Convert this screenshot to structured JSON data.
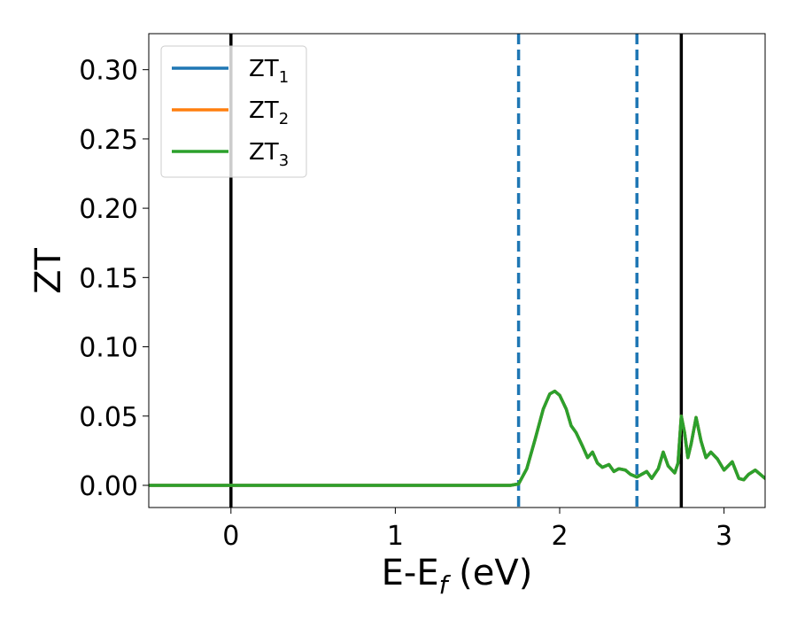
{
  "chart_data": {
    "type": "line",
    "xlabel": "E-E",
    "xlabel_sub": "f",
    "xlabel_unit": " (eV)",
    "ylabel": "ZT",
    "xlim": [
      -0.5,
      3.25
    ],
    "ylim": [
      -0.016,
      0.326
    ],
    "x_ticks": [
      0,
      1,
      2,
      3
    ],
    "x_tick_labels": [
      "0",
      "1",
      "2",
      "3"
    ],
    "y_ticks": [
      0.0,
      0.05,
      0.1,
      0.15,
      0.2,
      0.25,
      0.3
    ],
    "y_tick_labels": [
      "0.00",
      "0.05",
      "0.10",
      "0.15",
      "0.20",
      "0.25",
      "0.30"
    ],
    "grid": false,
    "legend_position": "top-left",
    "vertical_lines": [
      {
        "x": 0.0,
        "style": "solid",
        "color": "#000000"
      },
      {
        "x": 1.75,
        "style": "dashed",
        "color": "#1f77b4"
      },
      {
        "x": 2.47,
        "style": "dashed",
        "color": "#1f77b4"
      },
      {
        "x": 2.74,
        "style": "solid",
        "color": "#000000"
      }
    ],
    "series": [
      {
        "name": "ZT",
        "name_sub": "1",
        "color": "#1f77b4",
        "x": [
          -0.5,
          1.7,
          1.75,
          1.8,
          1.85,
          1.9,
          1.94,
          1.97,
          2.0,
          2.04,
          2.07,
          2.1,
          2.14,
          2.17,
          2.2,
          2.23,
          2.26,
          2.3,
          2.33,
          2.36,
          2.4,
          2.43,
          2.47,
          2.5,
          2.53,
          2.56,
          2.6,
          2.63,
          2.66,
          2.7,
          2.72,
          2.74,
          2.76,
          2.78,
          2.8,
          2.83,
          2.86,
          2.89,
          2.92,
          2.96,
          3.0,
          3.05,
          3.09,
          3.12,
          3.15,
          3.19,
          3.25
        ],
        "y": [
          0.0,
          0.0,
          0.001,
          0.012,
          0.033,
          0.055,
          0.066,
          0.068,
          0.065,
          0.055,
          0.043,
          0.038,
          0.028,
          0.02,
          0.024,
          0.016,
          0.013,
          0.015,
          0.01,
          0.012,
          0.011,
          0.008,
          0.006,
          0.008,
          0.01,
          0.005,
          0.012,
          0.024,
          0.014,
          0.009,
          0.016,
          0.05,
          0.038,
          0.02,
          0.03,
          0.049,
          0.032,
          0.02,
          0.024,
          0.019,
          0.011,
          0.017,
          0.005,
          0.004,
          0.008,
          0.011,
          0.005
        ]
      },
      {
        "name": "ZT",
        "name_sub": "2",
        "color": "#ff7f0e",
        "x": [
          -0.5,
          1.7,
          1.75,
          1.8,
          1.85,
          1.9,
          1.94,
          1.97,
          2.0,
          2.04,
          2.07,
          2.1,
          2.14,
          2.17,
          2.2,
          2.23,
          2.26,
          2.3,
          2.33,
          2.36,
          2.4,
          2.43,
          2.47,
          2.5,
          2.53,
          2.56,
          2.6,
          2.63,
          2.66,
          2.7,
          2.72,
          2.74,
          2.76,
          2.78,
          2.8,
          2.83,
          2.86,
          2.89,
          2.92,
          2.96,
          3.0,
          3.05,
          3.09,
          3.12,
          3.15,
          3.19,
          3.25
        ],
        "y": [
          0.0,
          0.0,
          0.001,
          0.012,
          0.033,
          0.055,
          0.066,
          0.068,
          0.065,
          0.055,
          0.043,
          0.038,
          0.028,
          0.02,
          0.024,
          0.016,
          0.013,
          0.015,
          0.01,
          0.012,
          0.011,
          0.008,
          0.006,
          0.008,
          0.01,
          0.005,
          0.012,
          0.024,
          0.014,
          0.009,
          0.016,
          0.05,
          0.038,
          0.02,
          0.03,
          0.049,
          0.032,
          0.02,
          0.024,
          0.019,
          0.011,
          0.017,
          0.005,
          0.004,
          0.008,
          0.011,
          0.005
        ]
      },
      {
        "name": "ZT",
        "name_sub": "3",
        "color": "#2ca02c",
        "x": [
          -0.5,
          1.7,
          1.75,
          1.8,
          1.85,
          1.9,
          1.94,
          1.97,
          2.0,
          2.04,
          2.07,
          2.1,
          2.14,
          2.17,
          2.2,
          2.23,
          2.26,
          2.3,
          2.33,
          2.36,
          2.4,
          2.43,
          2.47,
          2.5,
          2.53,
          2.56,
          2.6,
          2.63,
          2.66,
          2.7,
          2.72,
          2.74,
          2.76,
          2.78,
          2.8,
          2.83,
          2.86,
          2.89,
          2.92,
          2.96,
          3.0,
          3.05,
          3.09,
          3.12,
          3.15,
          3.19,
          3.25
        ],
        "y": [
          0.0,
          0.0,
          0.001,
          0.012,
          0.033,
          0.055,
          0.066,
          0.068,
          0.065,
          0.055,
          0.043,
          0.038,
          0.028,
          0.02,
          0.024,
          0.016,
          0.013,
          0.015,
          0.01,
          0.012,
          0.011,
          0.008,
          0.006,
          0.008,
          0.01,
          0.005,
          0.012,
          0.024,
          0.014,
          0.009,
          0.016,
          0.05,
          0.038,
          0.02,
          0.03,
          0.049,
          0.032,
          0.02,
          0.024,
          0.019,
          0.011,
          0.017,
          0.005,
          0.004,
          0.008,
          0.011,
          0.005
        ]
      }
    ]
  }
}
